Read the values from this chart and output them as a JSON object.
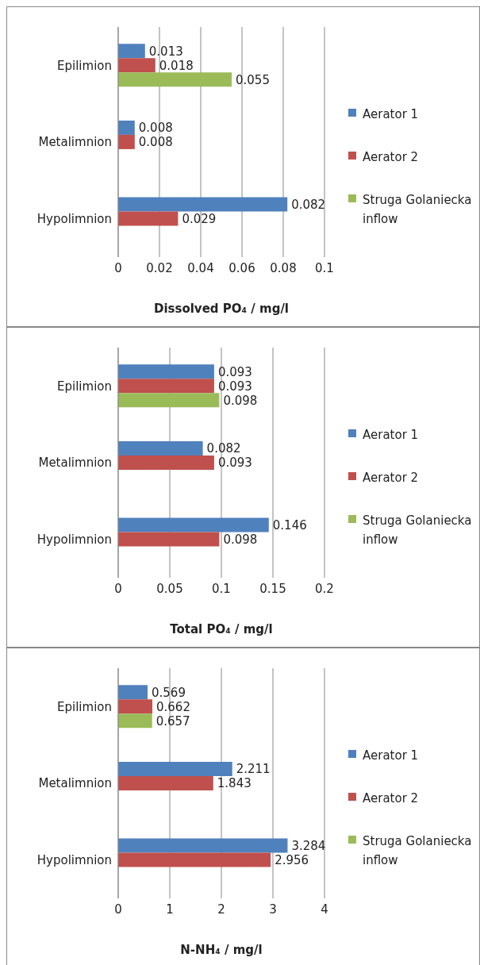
{
  "chart_data": [
    {
      "type": "bar",
      "orientation": "horizontal",
      "categories": [
        "Epilimion",
        "Metalimnion",
        "Hypolimnion"
      ],
      "xlabel": "Dissolved PO₄  / mg/l",
      "xlim": [
        0,
        0.1
      ],
      "xticks": [
        0,
        0.02,
        0.04,
        0.06,
        0.08,
        0.1
      ],
      "grid": "x",
      "legend": "right",
      "data_labels": true,
      "series": [
        {
          "name": "Aerator 1",
          "color": "#4f81bd",
          "values": [
            0.013,
            0.008,
            0.082
          ]
        },
        {
          "name": "Aerator 2",
          "color": "#c0504d",
          "values": [
            0.018,
            0.008,
            0.029
          ]
        },
        {
          "name": "Struga Golaniecka inflow",
          "color": "#9bbb59",
          "values": [
            0.055,
            null,
            null
          ]
        }
      ]
    },
    {
      "type": "bar",
      "orientation": "horizontal",
      "categories": [
        "Epilimion",
        "Metalimnion",
        "Hypolimnion"
      ],
      "xlabel": "Total PO₄  / mg/l",
      "xlim": [
        0,
        0.2
      ],
      "xticks": [
        0,
        0.05,
        0.1,
        0.15,
        0.2
      ],
      "grid": "x",
      "legend": "right",
      "data_labels": true,
      "series": [
        {
          "name": "Aerator 1",
          "color": "#4f81bd",
          "values": [
            0.093,
            0.082,
            0.146
          ]
        },
        {
          "name": "Aerator 2",
          "color": "#c0504d",
          "values": [
            0.093,
            0.093,
            0.098
          ]
        },
        {
          "name": "Struga Golaniecka inflow",
          "color": "#9bbb59",
          "values": [
            0.098,
            null,
            null
          ]
        }
      ]
    },
    {
      "type": "bar",
      "orientation": "horizontal",
      "categories": [
        "Epilimion",
        "Metalimnion",
        "Hypolimnion"
      ],
      "xlabel": "N-NH₄ / mg/l",
      "xlim": [
        0,
        4
      ],
      "xticks": [
        0,
        1,
        2,
        3,
        4
      ],
      "grid": "x",
      "legend": "right",
      "data_labels": true,
      "series": [
        {
          "name": "Aerator 1",
          "color": "#4f81bd",
          "values": [
            0.569,
            2.211,
            3.284
          ]
        },
        {
          "name": "Aerator 2",
          "color": "#c0504d",
          "values": [
            0.662,
            1.843,
            2.956
          ]
        },
        {
          "name": "Struga Golaniecka inflow",
          "color": "#9bbb59",
          "values": [
            0.657,
            null,
            null
          ]
        }
      ]
    }
  ]
}
